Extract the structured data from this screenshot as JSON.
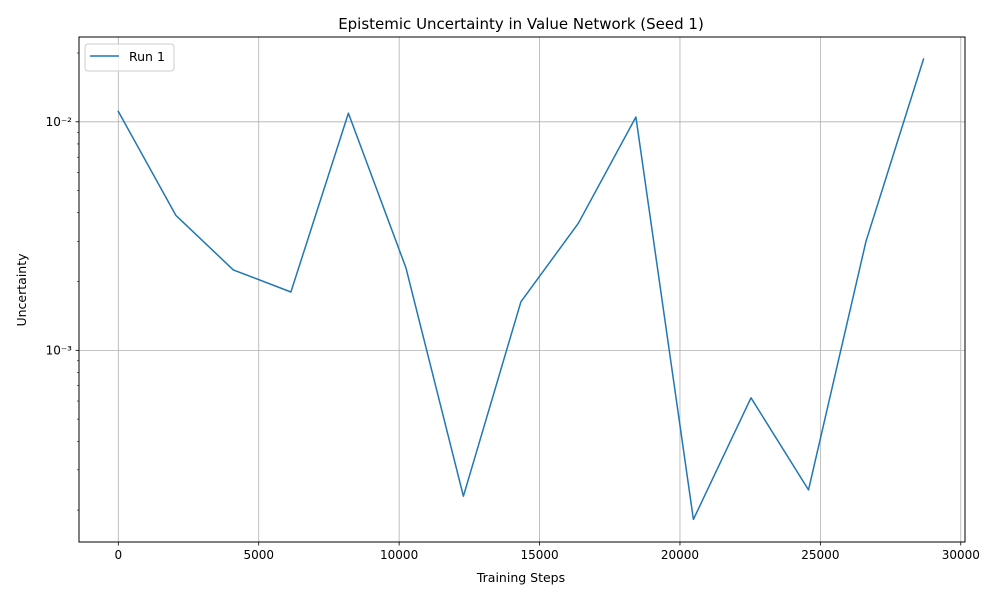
{
  "chart_data": {
    "type": "line",
    "title": "Epistemic Uncertainty in Value Network (Seed 1)",
    "xlabel": "Training Steps",
    "ylabel": "Uncertainty",
    "xscale": "linear",
    "yscale": "log",
    "xlim": [
      -1400,
      30150
    ],
    "ylim": [
      0.000145,
      0.0235
    ],
    "x_ticks": [
      0,
      5000,
      10000,
      15000,
      20000,
      25000,
      30000
    ],
    "y_ticks": [
      {
        "value": 0.01,
        "label": "10⁻²"
      },
      {
        "value": 0.001,
        "label": "10⁻³"
      }
    ],
    "grid": true,
    "legend_position": "top-left",
    "series": [
      {
        "name": "Run 1",
        "color": "#1f77b4",
        "x": [
          0,
          2048,
          4096,
          6144,
          8192,
          10240,
          12288,
          14336,
          16384,
          18432,
          20480,
          22528,
          24576,
          26624,
          28672
        ],
        "y": [
          0.0111,
          0.0039,
          0.00225,
          0.0018,
          0.0109,
          0.0023,
          0.00023,
          0.00163,
          0.0036,
          0.0105,
          0.000182,
          0.00062,
          0.000245,
          0.003,
          0.0188
        ]
      }
    ]
  }
}
